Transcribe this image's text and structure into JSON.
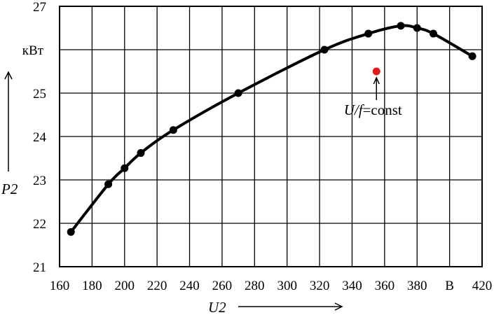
{
  "chart_data": {
    "type": "line",
    "xlim": [
      160,
      420
    ],
    "ylim": [
      21,
      27
    ],
    "x_ticks": [
      "160",
      "180",
      "200",
      "220",
      "240",
      "260",
      "280",
      "300",
      "320",
      "340",
      "360",
      "380",
      "В",
      "420"
    ],
    "y_ticks": [
      "21",
      "22",
      "23",
      "24",
      "25",
      "кВт",
      "27"
    ],
    "x_unit": "В",
    "y_unit": "кВт",
    "xlabel": "U2",
    "ylabel": "P2",
    "grid": true,
    "series": [
      {
        "x": [
          167,
          190,
          200,
          210,
          230,
          270,
          323,
          350,
          370,
          380,
          390,
          414
        ],
        "y": [
          21.8,
          22.9,
          23.27,
          23.62,
          24.15,
          25.0,
          26.0,
          26.37,
          26.55,
          26.5,
          26.37,
          25.85
        ]
      }
    ],
    "special_point": {
      "x": 355,
      "y": 25.5,
      "color": "#e31b1b",
      "label": "U/f=const",
      "label_italic": "U/f",
      "label_rest": "=const"
    }
  }
}
